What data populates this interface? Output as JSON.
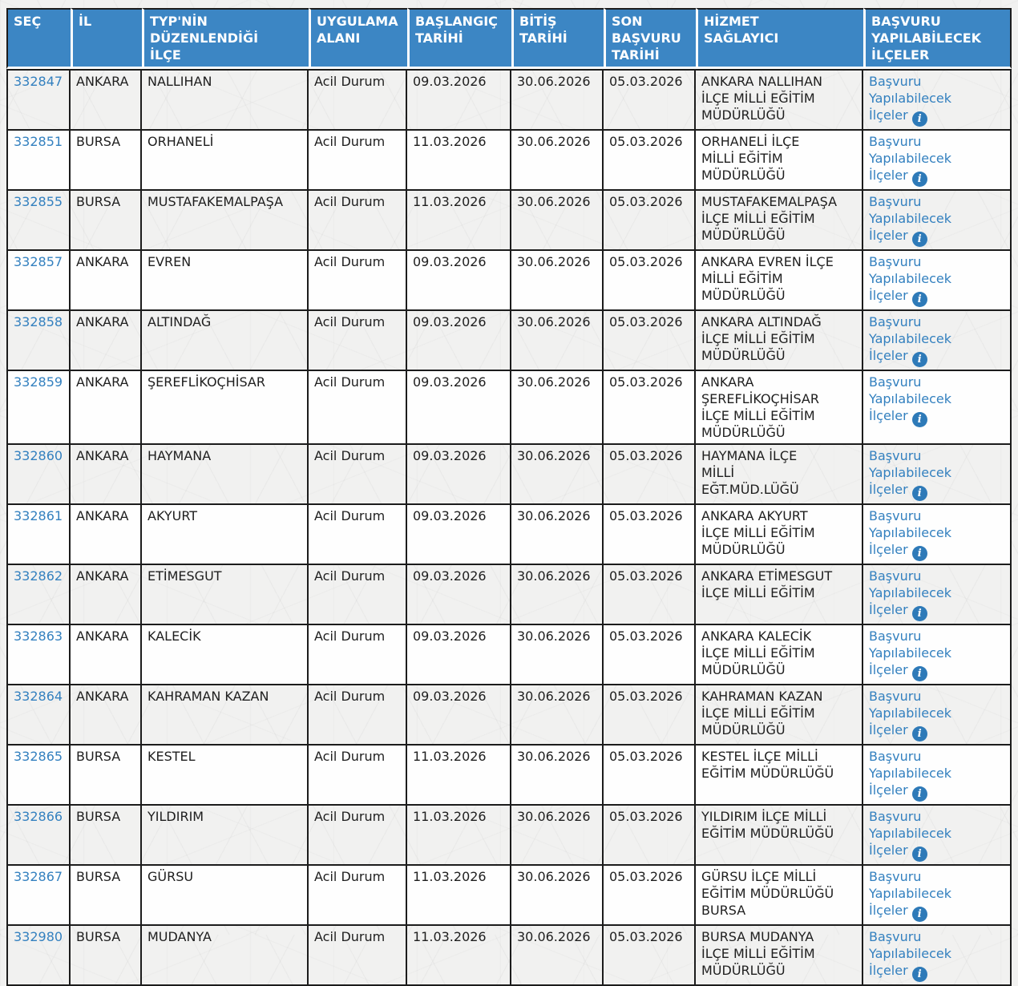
{
  "colors": {
    "header_bg": "#3c86c4",
    "link": "#3380bf",
    "info_icon_bg": "#2e7ab8",
    "grid_border": "#1c1c1c"
  },
  "table": {
    "columns": [
      {
        "key": "sec",
        "label": "SEÇ"
      },
      {
        "key": "il",
        "label": "İL"
      },
      {
        "key": "ilce",
        "label": "TYP'NİN\nDÜZENLENDİĞİ\nİLÇE"
      },
      {
        "key": "uygulama",
        "label": "UYGULAMA\nALANI"
      },
      {
        "key": "baslangic",
        "label": "BAŞLANGIÇ\nTARİHİ"
      },
      {
        "key": "bitis",
        "label": "BİTİŞ\nTARİHİ"
      },
      {
        "key": "son",
        "label": "SON\nBAŞVURU\nTARİHİ"
      },
      {
        "key": "hizmet",
        "label": "HİZMET\nSAĞLAYICI"
      },
      {
        "key": "basvuru",
        "label": "BAŞVURU\nYAPILABİLECEK\nİLÇELER"
      }
    ],
    "applicable_districts_link_label": "Başvuru\nYapılabilecek\nİlçeler",
    "info_icon_glyph": "i",
    "rows": [
      {
        "id": "332847",
        "il": "ANKARA",
        "ilce": "NALLIHAN",
        "uygulama": "Acil Durum",
        "baslangic": "09.03.2026",
        "bitis": "30.06.2026",
        "son": "05.03.2026",
        "hizmet": "ANKARA NALLIHAN\nİLÇE MİLLİ EĞİTİM\nMÜDÜRLÜĞÜ"
      },
      {
        "id": "332851",
        "il": "BURSA",
        "ilce": "ORHANELİ",
        "uygulama": "Acil Durum",
        "baslangic": "11.03.2026",
        "bitis": "30.06.2026",
        "son": "05.03.2026",
        "hizmet": "ORHANELİ İLÇE\nMİLLİ EĞİTİM\nMÜDÜRLÜĞÜ"
      },
      {
        "id": "332855",
        "il": "BURSA",
        "ilce": "MUSTAFAKEMALPAŞA",
        "uygulama": "Acil Durum",
        "baslangic": "11.03.2026",
        "bitis": "30.06.2026",
        "son": "05.03.2026",
        "hizmet": "MUSTAFAKEMALPAŞA\nİLÇE MİLLİ EĞİTİM\nMÜDÜRLÜĞÜ"
      },
      {
        "id": "332857",
        "il": "ANKARA",
        "ilce": "EVREN",
        "uygulama": "Acil Durum",
        "baslangic": "09.03.2026",
        "bitis": "30.06.2026",
        "son": "05.03.2026",
        "hizmet": "ANKARA EVREN İLÇE\nMİLLİ EĞİTİM\nMÜDÜRLÜĞÜ"
      },
      {
        "id": "332858",
        "il": "ANKARA",
        "ilce": "ALTINDAĞ",
        "uygulama": "Acil Durum",
        "baslangic": "09.03.2026",
        "bitis": "30.06.2026",
        "son": "05.03.2026",
        "hizmet": "ANKARA ALTINDAĞ\nİLÇE MİLLİ EĞİTİM\nMÜDÜRLÜĞÜ"
      },
      {
        "id": "332859",
        "il": "ANKARA",
        "ilce": "ŞEREFLİKOÇHİSAR",
        "uygulama": "Acil Durum",
        "baslangic": "09.03.2026",
        "bitis": "30.06.2026",
        "son": "05.03.2026",
        "hizmet": "ANKARA\nŞEREFLİKOÇHİSAR\nİLÇE MİLLİ EĞİTİM\nMÜDÜRLÜĞÜ"
      },
      {
        "id": "332860",
        "il": "ANKARA",
        "ilce": "HAYMANA",
        "uygulama": "Acil Durum",
        "baslangic": "09.03.2026",
        "bitis": "30.06.2026",
        "son": "05.03.2026",
        "hizmet": "HAYMANA İLÇE\nMİLLİ\nEĞT.MÜD.LÜĞÜ"
      },
      {
        "id": "332861",
        "il": "ANKARA",
        "ilce": "AKYURT",
        "uygulama": "Acil Durum",
        "baslangic": "09.03.2026",
        "bitis": "30.06.2026",
        "son": "05.03.2026",
        "hizmet": "ANKARA AKYURT\nİLÇE MİLLİ EĞİTİM\nMÜDÜRLÜĞÜ"
      },
      {
        "id": "332862",
        "il": "ANKARA",
        "ilce": "ETİMESGUT",
        "uygulama": "Acil Durum",
        "baslangic": "09.03.2026",
        "bitis": "30.06.2026",
        "son": "05.03.2026",
        "hizmet": "ANKARA ETİMESGUT\nİLÇE MİLLİ EĞİTİM"
      },
      {
        "id": "332863",
        "il": "ANKARA",
        "ilce": "KALECİK",
        "uygulama": "Acil Durum",
        "baslangic": "09.03.2026",
        "bitis": "30.06.2026",
        "son": "05.03.2026",
        "hizmet": "ANKARA KALECİK\nİLÇE MİLLİ EĞİTİM\nMÜDÜRLÜĞÜ"
      },
      {
        "id": "332864",
        "il": "ANKARA",
        "ilce": "KAHRAMAN KAZAN",
        "uygulama": "Acil Durum",
        "baslangic": "09.03.2026",
        "bitis": "30.06.2026",
        "son": "05.03.2026",
        "hizmet": "KAHRAMAN KAZAN\nİLÇE MİLLİ EĞİTİM\nMÜDÜRLÜĞÜ"
      },
      {
        "id": "332865",
        "il": "BURSA",
        "ilce": "KESTEL",
        "uygulama": "Acil Durum",
        "baslangic": "11.03.2026",
        "bitis": "30.06.2026",
        "son": "05.03.2026",
        "hizmet": "KESTEL İLÇE MİLLİ\nEĞİTİM MÜDÜRLÜĞÜ"
      },
      {
        "id": "332866",
        "il": "BURSA",
        "ilce": "YILDIRIM",
        "uygulama": "Acil Durum",
        "baslangic": "11.03.2026",
        "bitis": "30.06.2026",
        "son": "05.03.2026",
        "hizmet": "YILDIRIM İLÇE MİLLİ\nEĞİTİM MÜDÜRLÜĞÜ"
      },
      {
        "id": "332867",
        "il": "BURSA",
        "ilce": "GÜRSU",
        "uygulama": "Acil Durum",
        "baslangic": "11.03.2026",
        "bitis": "30.06.2026",
        "son": "05.03.2026",
        "hizmet": "GÜRSU İLÇE MİLLİ\nEĞİTİM MÜDÜRLÜĞÜ\nBURSA"
      },
      {
        "id": "332980",
        "il": "BURSA",
        "ilce": "MUDANYA",
        "uygulama": "Acil Durum",
        "baslangic": "11.03.2026",
        "bitis": "30.06.2026",
        "son": "05.03.2026",
        "hizmet": "BURSA MUDANYA\nİLÇE MİLLİ EĞİTİM\nMÜDÜRLÜĞÜ"
      }
    ]
  }
}
